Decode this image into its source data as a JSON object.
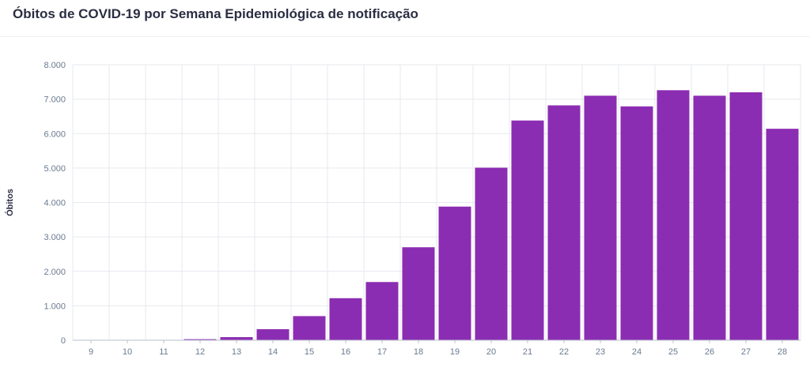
{
  "chart_title": "Óbitos de COVID-19 por Semana Epidemiológica de notificação",
  "chart_data": {
    "type": "bar",
    "title": "Óbitos de COVID-19 por Semana Epidemiológica de notificação",
    "xlabel": "",
    "ylabel": "Óbitos",
    "categories": [
      "9",
      "10",
      "11",
      "12",
      "13",
      "14",
      "15",
      "16",
      "17",
      "18",
      "19",
      "20",
      "21",
      "22",
      "23",
      "24",
      "25",
      "26",
      "27",
      "28"
    ],
    "values": [
      0,
      2,
      5,
      30,
      90,
      320,
      700,
      1220,
      1690,
      2700,
      3880,
      5010,
      6380,
      6820,
      7100,
      6790,
      7260,
      7100,
      7200,
      6140
    ],
    "ylim": [
      0,
      8000
    ],
    "yticks": [
      0,
      1000,
      2000,
      3000,
      4000,
      5000,
      6000,
      7000,
      8000
    ],
    "ytick_labels": [
      "0",
      "1.000",
      "2.000",
      "3.000",
      "4.000",
      "5.000",
      "6.000",
      "7.000",
      "8.000"
    ],
    "grid": true,
    "bar_color": "#8b2db2",
    "grid_color": "#e6e9ee",
    "tick_color": "#6b7a90"
  }
}
